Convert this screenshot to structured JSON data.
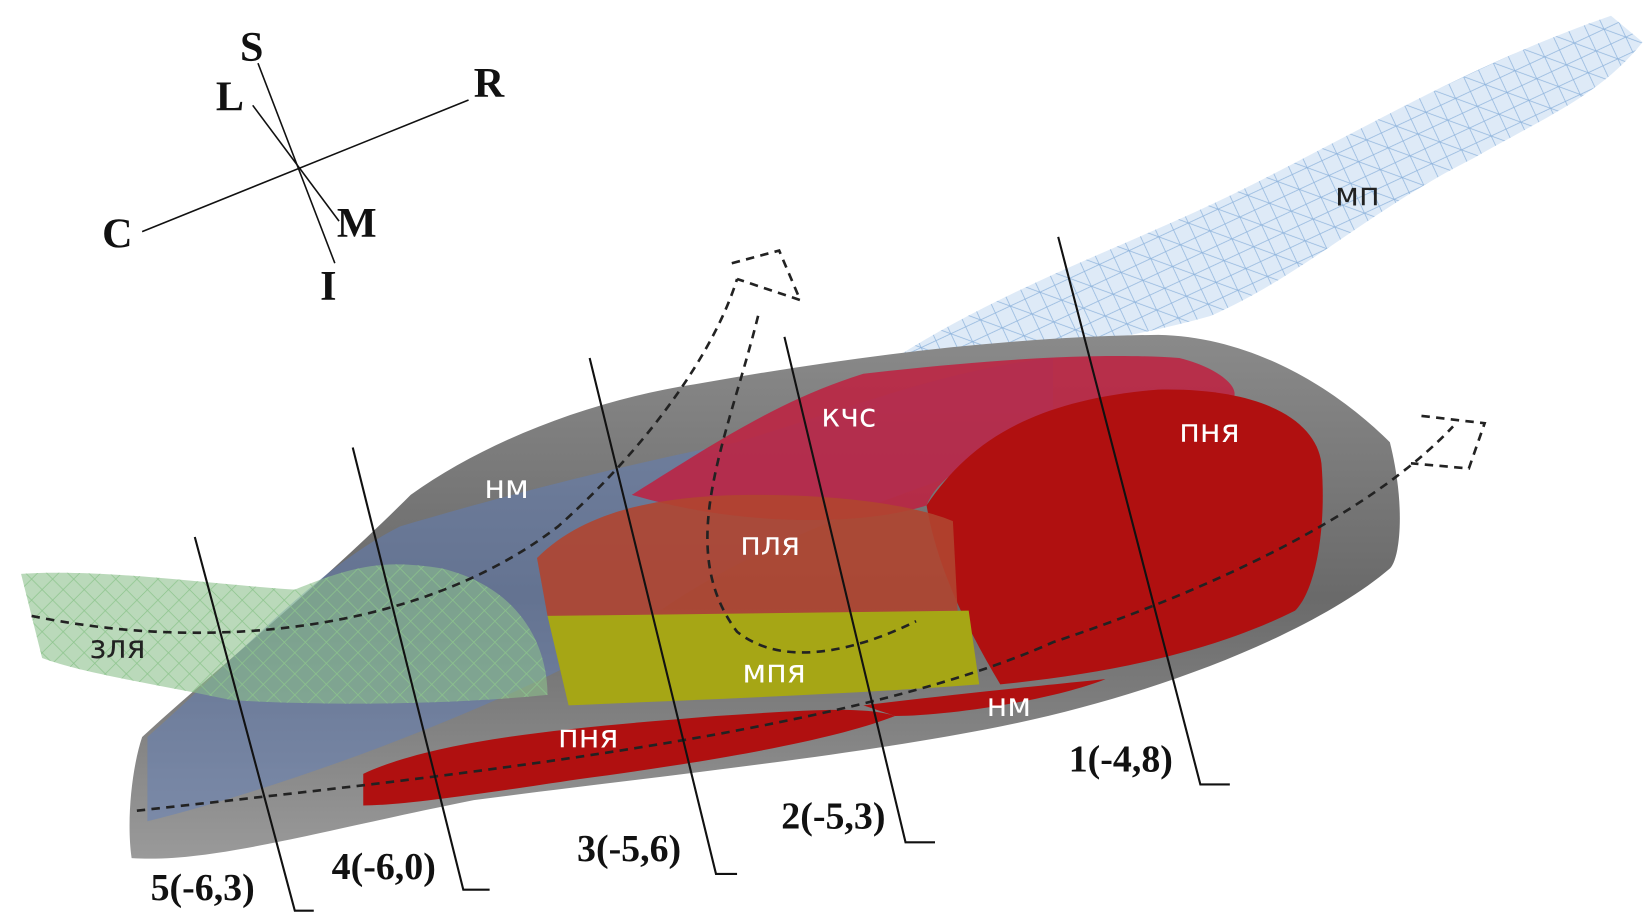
{
  "orientation": {
    "superior": "S",
    "left": "L",
    "right": "R",
    "caudal": "C",
    "medial": "M",
    "inferior": "I"
  },
  "regions": [
    "мп",
    "кчс",
    "пня",
    "нм",
    "пля",
    "зля",
    "мпя",
    "нм",
    "пня"
  ],
  "sections": [
    "1(-4,8)",
    "2(-5,3)",
    "3(-5,6)",
    "4(-6,0)",
    "5(-6,3)"
  ]
}
